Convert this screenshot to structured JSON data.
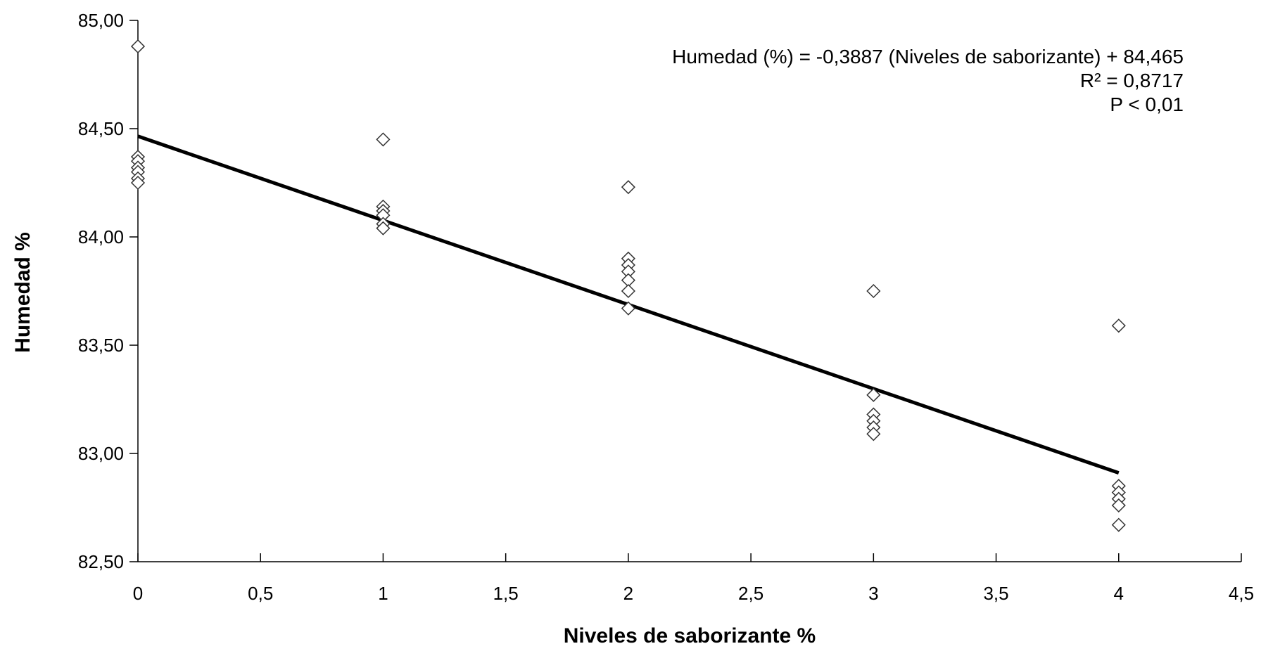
{
  "chart_data": {
    "type": "scatter",
    "title": "",
    "xlabel": "Niveles de saborizante %",
    "ylabel": "Humedad %",
    "xlim": [
      0,
      4.5
    ],
    "ylim": [
      82.5,
      85.0
    ],
    "x_ticks": [
      "0",
      "0,5",
      "1",
      "1,5",
      "2",
      "2,5",
      "3",
      "3,5",
      "4",
      "4,5"
    ],
    "x_tick_values": [
      0,
      0.5,
      1,
      1.5,
      2,
      2.5,
      3,
      3.5,
      4,
      4.5
    ],
    "y_ticks": [
      "82,50",
      "83,00",
      "83,50",
      "84,00",
      "84,50",
      "85,00"
    ],
    "y_tick_values": [
      82.5,
      83.0,
      83.5,
      84.0,
      84.5,
      85.0
    ],
    "grid": false,
    "marker": "diamond-open",
    "series": [
      {
        "points": [
          [
            0,
            84.88
          ],
          [
            0,
            84.37
          ],
          [
            0,
            84.35
          ],
          [
            0,
            84.32
          ],
          [
            0,
            84.3
          ],
          [
            0,
            84.27
          ],
          [
            0,
            84.25
          ],
          [
            1,
            84.45
          ],
          [
            1,
            84.14
          ],
          [
            1,
            84.12
          ],
          [
            1,
            84.1
          ],
          [
            1,
            84.06
          ],
          [
            1,
            84.04
          ],
          [
            2,
            84.23
          ],
          [
            2,
            83.9
          ],
          [
            2,
            83.87
          ],
          [
            2,
            83.84
          ],
          [
            2,
            83.8
          ],
          [
            2,
            83.75
          ],
          [
            2,
            83.67
          ],
          [
            3,
            83.75
          ],
          [
            3,
            83.27
          ],
          [
            3,
            83.18
          ],
          [
            3,
            83.15
          ],
          [
            3,
            83.12
          ],
          [
            3,
            83.09
          ],
          [
            4,
            83.59
          ],
          [
            4,
            82.85
          ],
          [
            4,
            82.82
          ],
          [
            4,
            82.79
          ],
          [
            4,
            82.76
          ],
          [
            4,
            82.67
          ]
        ]
      }
    ],
    "trendline": {
      "slope": -0.3887,
      "intercept": 84.465,
      "x_range": [
        0,
        4
      ]
    },
    "annotations": [
      "Humedad (%) = -0,3887 (Niveles de saborizante) + 84,465",
      "R² = 0,8717",
      "P < 0,01"
    ]
  }
}
